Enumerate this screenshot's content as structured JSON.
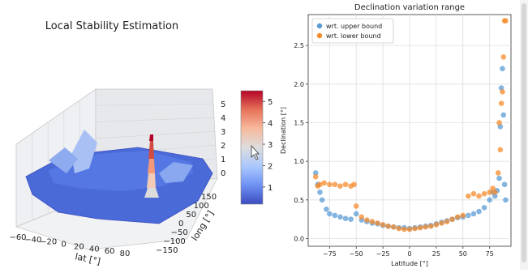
{
  "chart_data": [
    {
      "type": "surface3d",
      "title": "Local Stability Estimation",
      "xlabel": "lat [°]",
      "ylabel": "long [°]",
      "x_ticks": [
        "−60",
        "−40",
        "−20",
        "0",
        "20",
        "40",
        "60",
        "80"
      ],
      "y_ticks": [
        "150",
        "100",
        "50",
        "0",
        "−50",
        "−100",
        "−150"
      ],
      "z_ticks": [
        "0",
        "1",
        "2",
        "3",
        "4",
        "5"
      ],
      "colorbar_ticks": [
        "1",
        "2",
        "3",
        "4",
        "5"
      ],
      "colorbar_range": [
        0.2,
        5.5
      ],
      "colormap": "coolwarm",
      "colors": [
        "#3b4cc0",
        "#6f92f3",
        "#aac7fd",
        "#dddddd",
        "#f7b89c",
        "#e7745b",
        "#b40426"
      ]
    },
    {
      "type": "scatter",
      "title": "Declination variation range",
      "xlabel": "Latitude [°]",
      "ylabel": "Declination [°]",
      "xlim": [
        -95,
        95
      ],
      "ylim": [
        -0.1,
        2.9
      ],
      "x_ticks": [
        -75,
        -50,
        -25,
        0,
        25,
        50,
        75
      ],
      "y_ticks": [
        0.0,
        0.5,
        1.0,
        1.5,
        2.0,
        2.5
      ],
      "grid": true,
      "legend_position": "top-left",
      "series": [
        {
          "name": "wrt. upper bound",
          "color": "#5b9bd5",
          "points": [
            [
              -88,
              0.85
            ],
            [
              -86,
              0.7
            ],
            [
              -84,
              0.6
            ],
            [
              -82,
              0.5
            ],
            [
              -78,
              0.38
            ],
            [
              -75,
              0.32
            ],
            [
              -70,
              0.3
            ],
            [
              -65,
              0.28
            ],
            [
              -60,
              0.26
            ],
            [
              -55,
              0.25
            ],
            [
              -50,
              0.32
            ],
            [
              -45,
              0.24
            ],
            [
              -40,
              0.22
            ],
            [
              -35,
              0.2
            ],
            [
              -30,
              0.19
            ],
            [
              -25,
              0.17
            ],
            [
              -20,
              0.16
            ],
            [
              -15,
              0.15
            ],
            [
              -10,
              0.14
            ],
            [
              -5,
              0.14
            ],
            [
              0,
              0.13
            ],
            [
              5,
              0.14
            ],
            [
              10,
              0.15
            ],
            [
              15,
              0.16
            ],
            [
              20,
              0.17
            ],
            [
              25,
              0.19
            ],
            [
              30,
              0.21
            ],
            [
              35,
              0.23
            ],
            [
              40,
              0.25
            ],
            [
              45,
              0.27
            ],
            [
              50,
              0.28
            ],
            [
              55,
              0.3
            ],
            [
              60,
              0.32
            ],
            [
              65,
              0.35
            ],
            [
              70,
              0.4
            ],
            [
              75,
              0.5
            ],
            [
              78,
              0.6
            ],
            [
              80,
              0.55
            ],
            [
              82,
              0.62
            ],
            [
              84,
              0.78
            ],
            [
              85,
              1.45
            ],
            [
              86,
              1.95
            ],
            [
              87,
              2.2
            ],
            [
              88,
              1.6
            ],
            [
              89,
              0.7
            ],
            [
              90,
              0.5
            ]
          ]
        },
        {
          "name": "wrt. lower bound",
          "color": "#f58b2b",
          "points": [
            [
              -88,
              0.8
            ],
            [
              -86,
              0.68
            ],
            [
              -84,
              0.7
            ],
            [
              -80,
              0.72
            ],
            [
              -75,
              0.7
            ],
            [
              -70,
              0.7
            ],
            [
              -65,
              0.68
            ],
            [
              -60,
              0.7
            ],
            [
              -55,
              0.68
            ],
            [
              -52,
              0.7
            ],
            [
              -50,
              0.42
            ],
            [
              -45,
              0.28
            ],
            [
              -40,
              0.24
            ],
            [
              -35,
              0.22
            ],
            [
              -30,
              0.2
            ],
            [
              -25,
              0.18
            ],
            [
              -20,
              0.16
            ],
            [
              -15,
              0.15
            ],
            [
              -10,
              0.13
            ],
            [
              -5,
              0.12
            ],
            [
              0,
              0.12
            ],
            [
              5,
              0.13
            ],
            [
              10,
              0.14
            ],
            [
              15,
              0.15
            ],
            [
              20,
              0.16
            ],
            [
              25,
              0.18
            ],
            [
              30,
              0.2
            ],
            [
              35,
              0.22
            ],
            [
              40,
              0.25
            ],
            [
              45,
              0.28
            ],
            [
              50,
              0.3
            ],
            [
              55,
              0.55
            ],
            [
              60,
              0.58
            ],
            [
              65,
              0.55
            ],
            [
              70,
              0.58
            ],
            [
              75,
              0.6
            ],
            [
              78,
              0.65
            ],
            [
              80,
              0.6
            ],
            [
              83,
              0.85
            ],
            [
              85,
              1.15
            ],
            [
              86,
              1.75
            ],
            [
              87,
              1.9
            ],
            [
              88,
              2.35
            ],
            [
              89,
              2.82
            ],
            [
              90,
              2.82
            ],
            [
              84,
              1.5
            ]
          ]
        }
      ]
    }
  ]
}
